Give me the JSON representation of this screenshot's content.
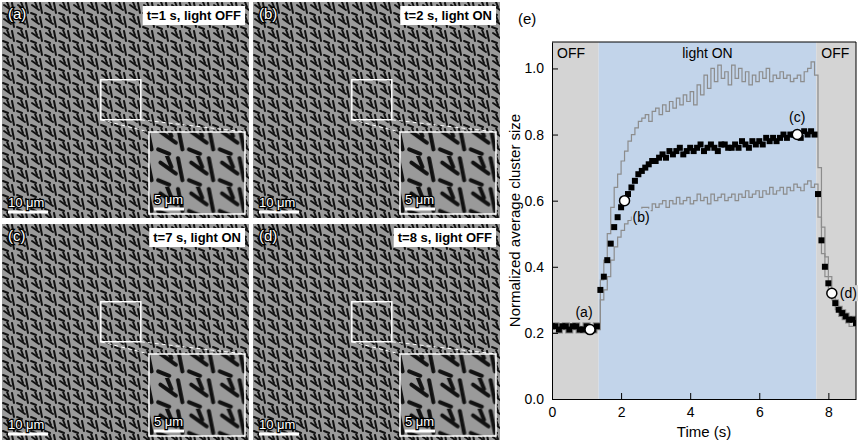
{
  "image_panels": [
    {
      "letter": "(a)",
      "caption": "t=1 s, light OFF",
      "scale_bar": "10 μm",
      "inset_scale_bar": "5 μm"
    },
    {
      "letter": "(b)",
      "caption": "t=2 s, light ON",
      "scale_bar": "10 μm",
      "inset_scale_bar": "5 μm"
    },
    {
      "letter": "(c)",
      "caption": "t=7 s, light ON",
      "scale_bar": "10 μm",
      "inset_scale_bar": "5 μm"
    },
    {
      "letter": "(d)",
      "caption": "t=8 s, light OFF",
      "scale_bar": "10 μm",
      "inset_scale_bar": "5 μm"
    }
  ],
  "chart_data": {
    "type": "scatter",
    "panel_label": "(e)",
    "x_label": "Time (s)",
    "y_label": "Normalized average cluster size",
    "xlim": [
      0,
      8.8
    ],
    "ylim": [
      0,
      1.08
    ],
    "xticks": [
      0,
      2,
      4,
      6,
      8
    ],
    "yticks": [
      {
        "value": 0,
        "label": "0.0"
      },
      0.2,
      0.4,
      0.6,
      0.8,
      {
        "value": 1,
        "label": "1.0"
      }
    ],
    "regions": [
      {
        "label": "OFF",
        "start": 0,
        "end": 1.35,
        "color": "#d4d4d4"
      },
      {
        "label": "light ON",
        "start": 1.35,
        "end": 7.65,
        "color": "#c2d4ea"
      },
      {
        "label": "OFF",
        "start": 7.65,
        "end": 8.8,
        "color": "#d4d4d4"
      }
    ],
    "x": [
      0,
      0.1,
      0.2,
      0.3,
      0.4,
      0.5,
      0.6,
      0.7,
      0.8,
      0.9,
      1,
      1.1,
      1.2,
      1.3,
      1.4,
      1.5,
      1.6,
      1.7,
      1.8,
      1.9,
      2,
      2.1,
      2.2,
      2.3,
      2.4,
      2.5,
      2.6,
      2.7,
      2.8,
      2.9,
      3,
      3.1,
      3.2,
      3.3,
      3.4,
      3.5,
      3.6,
      3.7,
      3.8,
      3.9,
      4,
      4.1,
      4.2,
      4.3,
      4.4,
      4.5,
      4.6,
      4.7,
      4.8,
      4.9,
      5,
      5.1,
      5.2,
      5.3,
      5.4,
      5.5,
      5.6,
      5.7,
      5.8,
      5.9,
      6,
      6.1,
      6.2,
      6.3,
      6.4,
      6.5,
      6.6,
      6.7,
      6.8,
      6.9,
      7,
      7.1,
      7.2,
      7.3,
      7.4,
      7.5,
      7.6,
      7.7,
      7.8,
      7.9,
      8,
      8.1,
      8.2,
      8.3,
      8.4,
      8.5,
      8.6,
      8.7,
      8.8
    ],
    "series": [
      {
        "type": "scatter",
        "marker": "square",
        "color": "#000000",
        "values": [
          0.22,
          0.22,
          0.21,
          0.22,
          0.22,
          0.21,
          0.22,
          0.22,
          0.21,
          0.21,
          0.22,
          0.21,
          0.21,
          0.22,
          0.33,
          0.37,
          0.42,
          0.47,
          0.52,
          0.55,
          0.58,
          0.6,
          0.62,
          0.64,
          0.66,
          0.68,
          0.69,
          0.7,
          0.71,
          0.72,
          0.72,
          0.73,
          0.74,
          0.73,
          0.75,
          0.74,
          0.75,
          0.76,
          0.74,
          0.75,
          0.76,
          0.75,
          0.76,
          0.77,
          0.75,
          0.76,
          0.77,
          0.76,
          0.75,
          0.77,
          0.77,
          0.76,
          0.76,
          0.77,
          0.76,
          0.78,
          0.77,
          0.76,
          0.78,
          0.77,
          0.78,
          0.77,
          0.79,
          0.78,
          0.79,
          0.78,
          0.79,
          0.8,
          0.79,
          0.8,
          0.8,
          0.8,
          0.79,
          0.81,
          0.8,
          0.81,
          0.8,
          0.62,
          0.48,
          0.4,
          0.35,
          0.32,
          0.29,
          0.27,
          0.26,
          0.25,
          0.24,
          0.24,
          0.23
        ]
      },
      {
        "type": "line",
        "line_style": "step",
        "color": "#8c8c8c",
        "values": [
          0.23,
          0.23,
          0.22,
          0.23,
          0.23,
          0.22,
          0.23,
          0.23,
          0.22,
          0.23,
          0.23,
          0.22,
          0.23,
          0.23,
          0.36,
          0.42,
          0.5,
          0.58,
          0.64,
          0.68,
          0.72,
          0.75,
          0.78,
          0.8,
          0.82,
          0.84,
          0.85,
          0.86,
          0.84,
          0.87,
          0.88,
          0.86,
          0.89,
          0.87,
          0.9,
          0.88,
          0.91,
          0.89,
          0.92,
          0.9,
          0.93,
          0.89,
          0.95,
          0.92,
          0.98,
          0.94,
          1.0,
          0.96,
          1.01,
          0.97,
          0.99,
          0.95,
          1.01,
          0.97,
          1.0,
          0.96,
          0.99,
          0.95,
          0.98,
          0.96,
          0.99,
          0.97,
          1.0,
          0.96,
          0.98,
          0.97,
          0.99,
          0.97,
          0.98,
          0.96,
          0.97,
          0.98,
          0.96,
          0.99,
          1.0,
          1.02,
          0.98,
          0.7,
          0.52,
          0.43,
          0.37,
          0.33,
          0.3,
          0.28,
          0.27,
          0.26,
          0.25,
          0.25,
          0.24
        ]
      },
      {
        "type": "line",
        "line_style": "step",
        "color": "#8c8c8c",
        "values": [
          0.2,
          0.2,
          0.2,
          0.21,
          0.2,
          0.2,
          0.21,
          0.2,
          0.2,
          0.2,
          0.21,
          0.2,
          0.2,
          0.21,
          0.3,
          0.33,
          0.37,
          0.42,
          0.46,
          0.49,
          0.51,
          0.53,
          0.54,
          0.55,
          0.56,
          0.57,
          0.58,
          0.58,
          0.57,
          0.59,
          0.58,
          0.59,
          0.6,
          0.58,
          0.6,
          0.59,
          0.61,
          0.59,
          0.6,
          0.61,
          0.59,
          0.6,
          0.62,
          0.6,
          0.61,
          0.59,
          0.62,
          0.6,
          0.61,
          0.62,
          0.6,
          0.61,
          0.62,
          0.6,
          0.62,
          0.61,
          0.63,
          0.61,
          0.62,
          0.63,
          0.61,
          0.63,
          0.62,
          0.64,
          0.62,
          0.63,
          0.64,
          0.62,
          0.64,
          0.63,
          0.65,
          0.64,
          0.63,
          0.65,
          0.66,
          0.64,
          0.65,
          0.55,
          0.44,
          0.37,
          0.33,
          0.3,
          0.27,
          0.25,
          0.24,
          0.23,
          0.22,
          0.22,
          0.21
        ]
      }
    ],
    "annotations": [
      {
        "text": "(a)",
        "x": 1.1,
        "y": 0.21
      },
      {
        "text": "(b)",
        "x": 2.1,
        "y": 0.6
      },
      {
        "text": "(c)",
        "x": 7.1,
        "y": 0.8
      },
      {
        "text": "(d)",
        "x": 8.1,
        "y": 0.32
      }
    ]
  }
}
